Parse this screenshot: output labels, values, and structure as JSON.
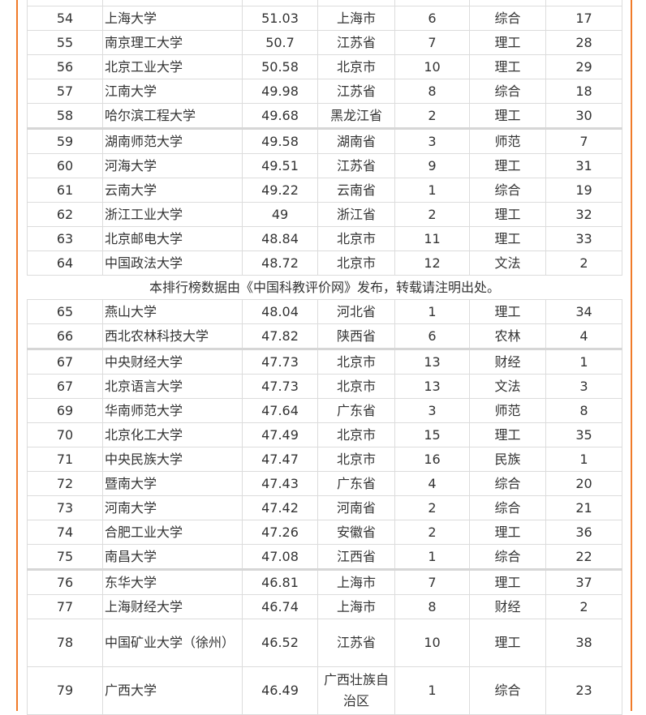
{
  "accent_color": "#f07a28",
  "partial_top_row": [
    "",
    "",
    "",
    "",
    "",
    "",
    ""
  ],
  "rows": [
    [
      "54",
      "上海大学",
      "51.03",
      "上海市",
      "6",
      "综合",
      "17"
    ],
    [
      "55",
      "南京理工大学",
      "50.7",
      "江苏省",
      "7",
      "理工",
      "28"
    ],
    [
      "56",
      "北京工业大学",
      "50.58",
      "北京市",
      "10",
      "理工",
      "29"
    ],
    [
      "57",
      "江南大学",
      "49.98",
      "江苏省",
      "8",
      "综合",
      "18"
    ],
    [
      "58",
      "哈尔滨工程大学",
      "49.68",
      "黑龙江省",
      "2",
      "理工",
      "30"
    ],
    [
      "59",
      "湖南师范大学",
      "49.58",
      "湖南省",
      "3",
      "师范",
      "7"
    ],
    [
      "60",
      "河海大学",
      "49.51",
      "江苏省",
      "9",
      "理工",
      "31"
    ],
    [
      "61",
      "云南大学",
      "49.22",
      "云南省",
      "1",
      "综合",
      "19"
    ],
    [
      "62",
      "浙江工业大学",
      "49",
      "浙江省",
      "2",
      "理工",
      "32"
    ],
    [
      "63",
      "北京邮电大学",
      "48.84",
      "北京市",
      "11",
      "理工",
      "33"
    ],
    [
      "64",
      "中国政法大学",
      "48.72",
      "北京市",
      "12",
      "文法",
      "2"
    ],
    "本排行榜数据由《中国科教评价网》发布，转载请注明出处。",
    [
      "65",
      "燕山大学",
      "48.04",
      "河北省",
      "1",
      "理工",
      "34"
    ],
    [
      "66",
      "西北农林科技大学",
      "47.82",
      "陕西省",
      "6",
      "农林",
      "4"
    ],
    [
      "67",
      "中央财经大学",
      "47.73",
      "北京市",
      "13",
      "财经",
      "1"
    ],
    [
      "67",
      "北京语言大学",
      "47.73",
      "北京市",
      "13",
      "文法",
      "3"
    ],
    [
      "69",
      "华南师范大学",
      "47.64",
      "广东省",
      "3",
      "师范",
      "8"
    ],
    [
      "70",
      "北京化工大学",
      "47.49",
      "北京市",
      "15",
      "理工",
      "35"
    ],
    [
      "71",
      "中央民族大学",
      "47.47",
      "北京市",
      "16",
      "民族",
      "1"
    ],
    [
      "72",
      "暨南大学",
      "47.43",
      "广东省",
      "4",
      "综合",
      "20"
    ],
    [
      "73",
      "河南大学",
      "47.42",
      "河南省",
      "2",
      "综合",
      "21"
    ],
    [
      "74",
      "合肥工业大学",
      "47.26",
      "安徽省",
      "2",
      "理工",
      "36"
    ],
    [
      "75",
      "南昌大学",
      "47.08",
      "江西省",
      "1",
      "综合",
      "22"
    ],
    [
      "76",
      "东华大学",
      "46.81",
      "上海市",
      "7",
      "理工",
      "37"
    ],
    [
      "77",
      "上海财经大学",
      "46.74",
      "上海市",
      "8",
      "财经",
      "2"
    ],
    [
      "78",
      "中国矿业大学（徐州）",
      "46.52",
      "江苏省",
      "10",
      "理工",
      "38"
    ],
    [
      "79",
      "广西大学",
      "46.49",
      "广西壮族自治区",
      "1",
      "综合",
      "23"
    ]
  ]
}
